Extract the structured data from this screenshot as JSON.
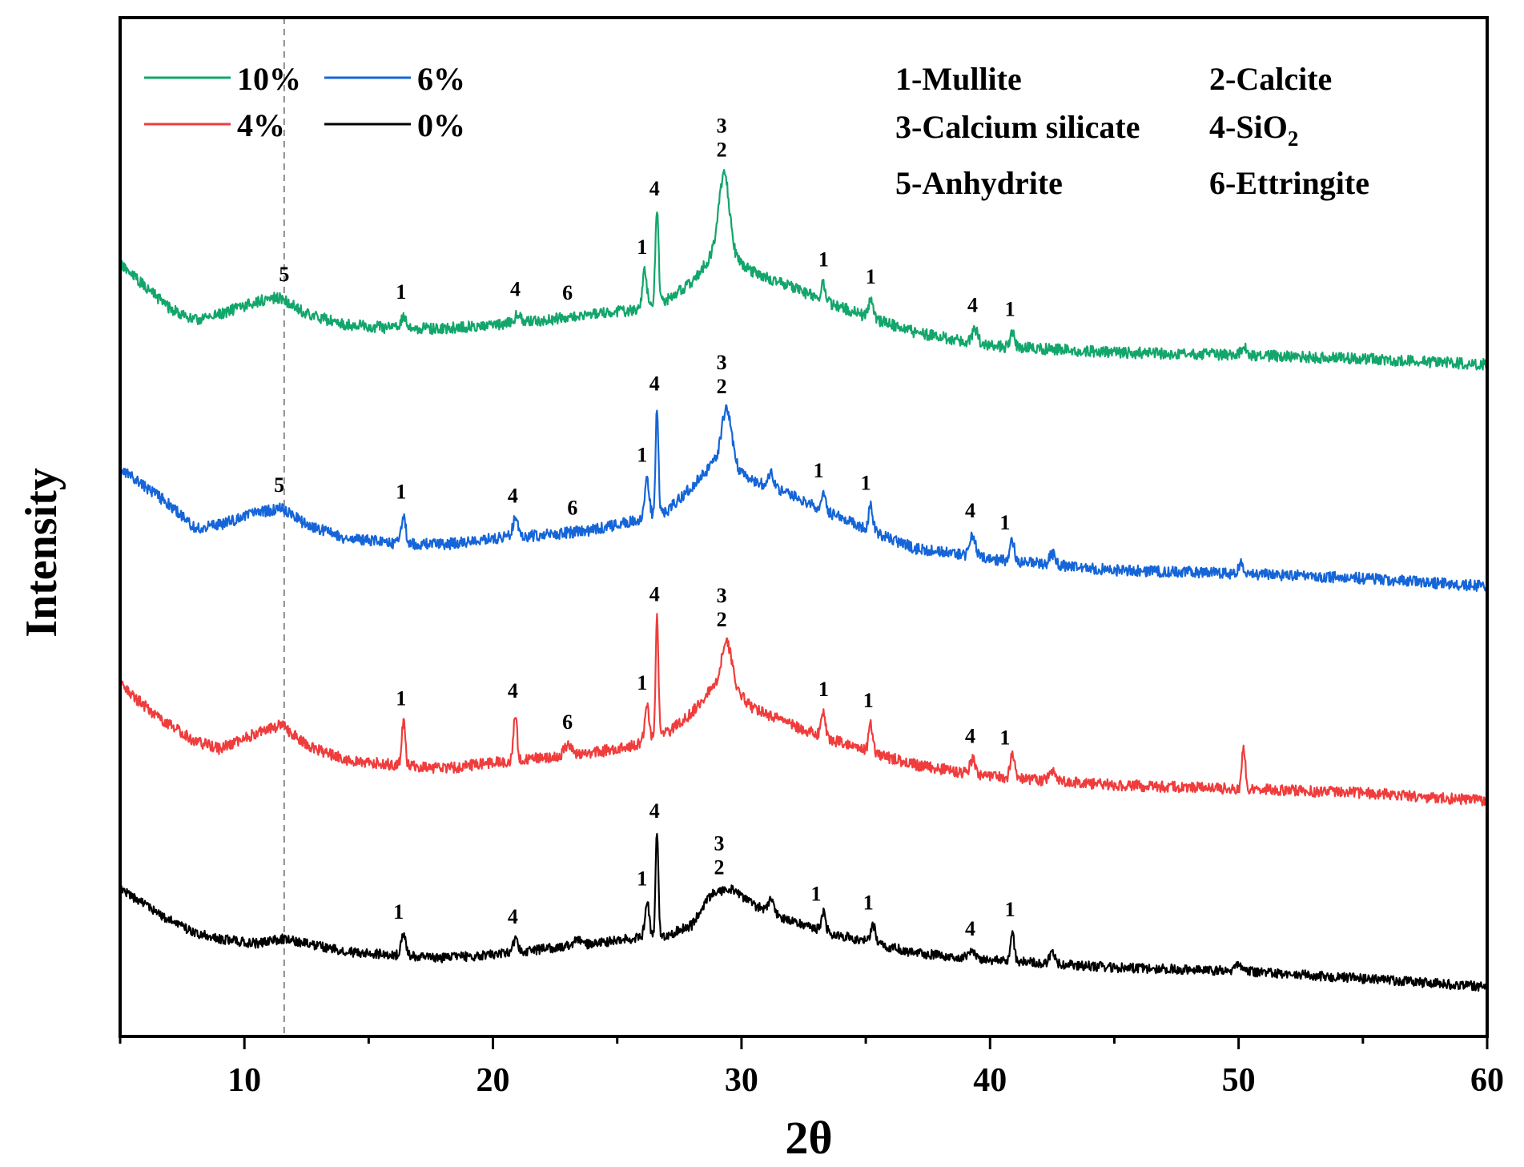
{
  "chart_data": {
    "type": "line",
    "title": "",
    "xlabel": "2θ",
    "ylabel": "Intensity",
    "xlim": [
      5,
      60
    ],
    "xticks": [
      10,
      20,
      30,
      40,
      50,
      60
    ],
    "reference_line_x": 11.6,
    "legend": [
      {
        "label": "10%",
        "color": "#12A66B"
      },
      {
        "label": "6%",
        "color": "#1565D8"
      },
      {
        "label": "4%",
        "color": "#F03C3C"
      },
      {
        "label": "0%",
        "color": "#000000"
      }
    ],
    "phase_key": [
      {
        "number": "1",
        "name": "Mullite"
      },
      {
        "number": "2",
        "name": "Calcite"
      },
      {
        "number": "3",
        "name": "Calcium silicate"
      },
      {
        "number": "4",
        "name": "SiO",
        "subscript": "2"
      },
      {
        "number": "5",
        "name": "Anhydrite"
      },
      {
        "number": "6",
        "name": "Ettringite"
      }
    ],
    "series": [
      {
        "name": "10%",
        "color": "#12A66B",
        "noise": 7,
        "seed": 11,
        "baseline": [
          [
            5,
            330
          ],
          [
            7,
            385
          ],
          [
            8,
            400
          ],
          [
            9,
            392
          ],
          [
            11,
            372
          ],
          [
            11.5,
            372
          ],
          [
            12.5,
            392
          ],
          [
            14,
            405
          ],
          [
            16,
            410
          ],
          [
            18,
            410
          ],
          [
            20,
            405
          ],
          [
            22,
            400
          ],
          [
            24,
            392
          ],
          [
            25.5,
            388
          ],
          [
            27,
            375
          ],
          [
            28,
            352
          ],
          [
            28.8,
            320
          ],
          [
            29.6,
            322
          ],
          [
            30.5,
            340
          ],
          [
            32,
            358
          ],
          [
            33.5,
            378
          ],
          [
            35,
            395
          ],
          [
            37,
            415
          ],
          [
            40,
            432
          ],
          [
            45,
            440
          ],
          [
            50,
            443
          ],
          [
            55,
            448
          ],
          [
            60,
            455
          ]
        ],
        "peaks": [
          [
            16.4,
            16,
            0.15
          ],
          [
            21.0,
            12,
            0.15
          ],
          [
            26.1,
            45,
            0.12
          ],
          [
            26.6,
            115,
            0.09
          ],
          [
            29.3,
            105,
            0.3
          ],
          [
            33.3,
            22,
            0.12
          ],
          [
            35.2,
            22,
            0.15
          ],
          [
            39.4,
            18,
            0.15
          ],
          [
            40.9,
            18,
            0.12
          ],
          [
            50.2,
            12,
            0.12
          ]
        ],
        "labels": [
          {
            "text": "5",
            "x": 11.6
          },
          {
            "text": "1",
            "x": 16.3
          },
          {
            "text": "4",
            "x": 20.9
          },
          {
            "text": "6",
            "x": 23.0
          },
          {
            "text": "1",
            "x": 26.0
          },
          {
            "text": "4",
            "x": 26.5
          },
          {
            "text": "3",
            "x": 29.2
          },
          {
            "text": "2",
            "x": 29.2
          },
          {
            "text": "1",
            "x": 33.3
          },
          {
            "text": "1",
            "x": 35.2
          },
          {
            "text": "4",
            "x": 39.3
          },
          {
            "text": "1",
            "x": 40.8
          }
        ]
      },
      {
        "name": "6%",
        "color": "#1565D8",
        "noise": 7,
        "seed": 23,
        "baseline": [
          [
            5,
            585
          ],
          [
            7,
            630
          ],
          [
            8,
            660
          ],
          [
            9,
            655
          ],
          [
            10.5,
            640
          ],
          [
            11.5,
            635
          ],
          [
            12.5,
            655
          ],
          [
            14,
            672
          ],
          [
            16,
            678
          ],
          [
            18,
            680
          ],
          [
            20,
            672
          ],
          [
            22,
            668
          ],
          [
            24,
            662
          ],
          [
            25.5,
            652
          ],
          [
            27,
            638
          ],
          [
            28,
            608
          ],
          [
            28.8,
            580
          ],
          [
            29.6,
            585
          ],
          [
            30.5,
            600
          ],
          [
            32,
            618
          ],
          [
            33.5,
            640
          ],
          [
            35,
            660
          ],
          [
            37,
            685
          ],
          [
            40,
            698
          ],
          [
            45,
            712
          ],
          [
            50,
            716
          ],
          [
            55,
            722
          ],
          [
            60,
            732
          ]
        ],
        "peaks": [
          [
            16.4,
            35,
            0.12
          ],
          [
            20.9,
            22,
            0.15
          ],
          [
            26.2,
            48,
            0.12
          ],
          [
            26.6,
            135,
            0.08
          ],
          [
            29.4,
            72,
            0.3
          ],
          [
            31.2,
            18,
            0.15
          ],
          [
            33.3,
            20,
            0.12
          ],
          [
            35.2,
            30,
            0.12
          ],
          [
            39.3,
            28,
            0.15
          ],
          [
            40.9,
            26,
            0.12
          ],
          [
            42.5,
            14,
            0.15
          ],
          [
            50.1,
            14,
            0.15
          ]
        ],
        "labels": [
          {
            "text": "5",
            "x": 11.4
          },
          {
            "text": "1",
            "x": 16.3
          },
          {
            "text": "4",
            "x": 20.8
          },
          {
            "text": "6",
            "x": 23.2
          },
          {
            "text": "1",
            "x": 26.0
          },
          {
            "text": "4",
            "x": 26.5
          },
          {
            "text": "3",
            "x": 29.2
          },
          {
            "text": "2",
            "x": 29.2
          },
          {
            "text": "1",
            "x": 33.1
          },
          {
            "text": "1",
            "x": 35.0
          },
          {
            "text": "4",
            "x": 39.2
          },
          {
            "text": "1",
            "x": 40.6
          }
        ]
      },
      {
        "name": "4%",
        "color": "#F03C3C",
        "noise": 7,
        "seed": 37,
        "baseline": [
          [
            5,
            855
          ],
          [
            6.5,
            895
          ],
          [
            8,
            925
          ],
          [
            9,
            935
          ],
          [
            10.5,
            915
          ],
          [
            11.5,
            905
          ],
          [
            12.5,
            930
          ],
          [
            14,
            948
          ],
          [
            16,
            955
          ],
          [
            18,
            960
          ],
          [
            20,
            952
          ],
          [
            22,
            946
          ],
          [
            24,
            940
          ],
          [
            25.5,
            932
          ],
          [
            27,
            915
          ],
          [
            28,
            890
          ],
          [
            28.8,
            858
          ],
          [
            29.6,
            858
          ],
          [
            30.5,
            885
          ],
          [
            32,
            905
          ],
          [
            33.5,
            922
          ],
          [
            35,
            938
          ],
          [
            37,
            955
          ],
          [
            40,
            970
          ],
          [
            45,
            980
          ],
          [
            50,
            985
          ],
          [
            55,
            990
          ],
          [
            60,
            1000
          ]
        ],
        "peaks": [
          [
            16.4,
            55,
            0.1
          ],
          [
            20.9,
            58,
            0.1
          ],
          [
            23.0,
            12,
            0.2
          ],
          [
            26.2,
            42,
            0.12
          ],
          [
            26.6,
            150,
            0.08
          ],
          [
            29.4,
            55,
            0.3
          ],
          [
            33.3,
            30,
            0.12
          ],
          [
            35.2,
            36,
            0.12
          ],
          [
            39.3,
            18,
            0.15
          ],
          [
            40.9,
            30,
            0.12
          ],
          [
            42.5,
            12,
            0.15
          ],
          [
            50.2,
            50,
            0.1
          ]
        ],
        "labels": [
          {
            "text": "1",
            "x": 16.3
          },
          {
            "text": "4",
            "x": 20.8
          },
          {
            "text": "6",
            "x": 23.0
          },
          {
            "text": "1",
            "x": 26.0
          },
          {
            "text": "4",
            "x": 26.5
          },
          {
            "text": "3",
            "x": 29.2
          },
          {
            "text": "2",
            "x": 29.2
          },
          {
            "text": "1",
            "x": 33.3
          },
          {
            "text": "1",
            "x": 35.1
          },
          {
            "text": "4",
            "x": 39.2
          },
          {
            "text": "1",
            "x": 40.6
          }
        ]
      },
      {
        "name": "0%",
        "color": "#000000",
        "noise": 6,
        "seed": 53,
        "baseline": [
          [
            5,
            1110
          ],
          [
            6.5,
            1140
          ],
          [
            8,
            1165
          ],
          [
            9,
            1172
          ],
          [
            10.5,
            1178
          ],
          [
            11.5,
            1172
          ],
          [
            12.5,
            1178
          ],
          [
            14,
            1188
          ],
          [
            16,
            1192
          ],
          [
            18,
            1196
          ],
          [
            20,
            1192
          ],
          [
            22,
            1185
          ],
          [
            24,
            1178
          ],
          [
            25.5,
            1172
          ],
          [
            27,
            1168
          ],
          [
            28,
            1155
          ],
          [
            28.8,
            1115
          ],
          [
            29.6,
            1110
          ],
          [
            30.5,
            1130
          ],
          [
            32,
            1150
          ],
          [
            33.5,
            1165
          ],
          [
            35,
            1175
          ],
          [
            37,
            1190
          ],
          [
            40,
            1198
          ],
          [
            45,
            1208
          ],
          [
            50,
            1212
          ],
          [
            55,
            1222
          ],
          [
            60,
            1232
          ]
        ],
        "peaks": [
          [
            16.4,
            26,
            0.12
          ],
          [
            20.9,
            16,
            0.15
          ],
          [
            23.4,
            8,
            0.2
          ],
          [
            26.2,
            45,
            0.12
          ],
          [
            26.6,
            130,
            0.08
          ],
          [
            31.2,
            16,
            0.15
          ],
          [
            33.3,
            25,
            0.12
          ],
          [
            35.3,
            22,
            0.12
          ],
          [
            39.3,
            8,
            0.15
          ],
          [
            40.9,
            36,
            0.1
          ],
          [
            42.5,
            12,
            0.15
          ],
          [
            50.0,
            10,
            0.15
          ]
        ],
        "labels": [
          {
            "text": "1",
            "x": 16.2
          },
          {
            "text": "4",
            "x": 20.8
          },
          {
            "text": "1",
            "x": 26.0
          },
          {
            "text": "4",
            "x": 26.5
          },
          {
            "text": "3",
            "x": 29.1
          },
          {
            "text": "2",
            "x": 29.1
          },
          {
            "text": "1",
            "x": 33.0
          },
          {
            "text": "1",
            "x": 35.1
          },
          {
            "text": "4",
            "x": 39.2
          },
          {
            "text": "1",
            "x": 40.8
          }
        ]
      }
    ]
  }
}
